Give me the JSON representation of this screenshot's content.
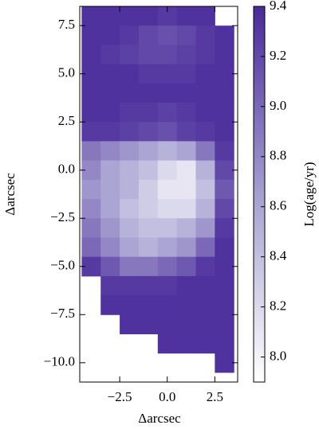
{
  "chart_data": {
    "type": "heatmap",
    "x_label": "Δarcsec",
    "y_label": "Δarcsec",
    "colorbar_label": "Log(age/yr)",
    "x": [
      -4,
      -3,
      -2,
      -1,
      0,
      1,
      2,
      3
    ],
    "y": [
      8,
      7,
      6,
      5,
      4,
      3,
      2,
      1,
      0,
      -1,
      -2,
      -3,
      -4,
      -5,
      -6,
      -7,
      -8,
      -9,
      -10
    ],
    "values": [
      [
        9.35,
        9.35,
        9.35,
        9.35,
        9.3,
        9.35,
        9.35,
        null
      ],
      [
        9.35,
        9.35,
        9.3,
        9.2,
        9.15,
        9.2,
        9.3,
        9.35
      ],
      [
        9.35,
        9.3,
        9.25,
        9.2,
        9.2,
        9.25,
        9.3,
        9.35
      ],
      [
        9.35,
        9.35,
        9.35,
        9.3,
        9.3,
        9.3,
        9.35,
        9.35
      ],
      [
        9.35,
        9.35,
        9.35,
        9.35,
        9.35,
        9.35,
        9.35,
        9.35
      ],
      [
        9.35,
        9.35,
        9.3,
        9.3,
        9.25,
        9.3,
        9.35,
        9.35
      ],
      [
        9.3,
        9.3,
        9.25,
        9.2,
        9.15,
        9.25,
        9.3,
        9.35
      ],
      [
        8.9,
        8.8,
        8.7,
        8.6,
        8.5,
        8.6,
        8.9,
        9.3
      ],
      [
        8.8,
        8.6,
        8.5,
        8.4,
        8.2,
        8.1,
        8.5,
        9.2
      ],
      [
        8.7,
        8.6,
        8.5,
        8.3,
        8.1,
        8.1,
        8.4,
        9.1
      ],
      [
        8.8,
        8.6,
        8.4,
        8.3,
        8.2,
        8.2,
        8.5,
        9.2
      ],
      [
        8.9,
        8.7,
        8.5,
        8.4,
        8.4,
        8.5,
        8.7,
        9.3
      ],
      [
        9.0,
        8.8,
        8.6,
        8.5,
        8.6,
        8.7,
        9.0,
        9.35
      ],
      [
        9.3,
        9.1,
        8.9,
        8.9,
        9.0,
        9.1,
        9.3,
        9.35
      ],
      [
        null,
        9.3,
        9.3,
        9.3,
        9.3,
        9.35,
        9.35,
        9.35
      ],
      [
        null,
        9.35,
        9.35,
        9.35,
        9.35,
        9.35,
        9.35,
        9.35
      ],
      [
        null,
        null,
        9.35,
        9.35,
        9.35,
        9.35,
        9.35,
        9.35
      ],
      [
        null,
        null,
        null,
        null,
        9.35,
        9.35,
        9.35,
        9.35
      ],
      [
        null,
        null,
        null,
        null,
        null,
        null,
        null,
        9.35
      ]
    ],
    "xlim": [
      -4.6,
      3.7
    ],
    "ylim": [
      -11.0,
      8.5
    ],
    "xticks": [
      {
        "value": -2.5,
        "label": "−2.5"
      },
      {
        "value": 0,
        "label": "0.0"
      },
      2.5
    ],
    "yticks": [
      7.5,
      {
        "value": 5,
        "label": "5.0"
      },
      2.5,
      {
        "value": 0,
        "label": "0.0"
      },
      {
        "value": -2.5,
        "label": "−2.5"
      },
      {
        "value": -5,
        "label": "−5.0"
      },
      {
        "value": -7.5,
        "label": "−7.5"
      },
      {
        "value": -10,
        "label": "−10.0"
      }
    ],
    "clim": [
      7.9,
      9.4
    ],
    "cticks": [
      {
        "value": 8,
        "label": "8.0"
      },
      8.2,
      8.4,
      8.6,
      8.8,
      {
        "value": 9,
        "label": "9.0"
      },
      9.2,
      9.4
    ],
    "colormap": [
      "#ffffff",
      "#a59fd0",
      "#4a2a9a"
    ]
  }
}
